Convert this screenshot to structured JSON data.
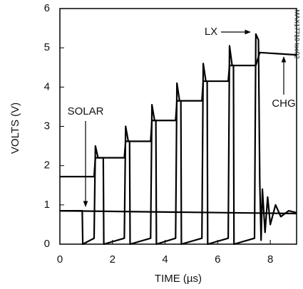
{
  "chart_data": {
    "type": "line",
    "xlabel": "TIME (µs)",
    "ylabel": "VOLTS (V)",
    "figure_id": "MAX17710 toc02",
    "xlim": [
      0,
      9
    ],
    "ylim": [
      0,
      6
    ],
    "xticks": [
      0,
      2,
      4,
      6,
      8
    ],
    "yticks": [
      0,
      1,
      2,
      3,
      4,
      5,
      6
    ],
    "grid": false,
    "series": [
      {
        "name": "LX",
        "color": "#000000",
        "x": [
          0,
          0.85,
          0.87,
          1.3,
          1.35,
          1.45,
          1.65,
          1.67,
          2.45,
          2.5,
          2.6,
          2.65,
          2.67,
          3.45,
          3.5,
          3.6,
          3.65,
          3.67,
          4.4,
          4.45,
          4.55,
          4.6,
          4.62,
          5.4,
          5.45,
          5.55,
          5.6,
          5.62,
          6.4,
          6.45,
          6.55,
          6.6,
          6.62,
          7.4,
          7.45,
          7.55,
          7.6,
          7.65,
          7.7,
          7.8,
          7.9,
          8.0,
          8.2,
          8.4,
          8.7,
          9
        ],
        "values": [
          0.85,
          0.85,
          0,
          0.15,
          2.5,
          2.2,
          2.2,
          0,
          0.15,
          3.0,
          2.62,
          2.62,
          0,
          0.15,
          3.55,
          3.15,
          3.15,
          0,
          0.15,
          4.1,
          3.65,
          3.65,
          0,
          0.15,
          4.6,
          4.15,
          4.15,
          0,
          0.15,
          5.05,
          4.55,
          4.55,
          0,
          0.15,
          5.35,
          5.2,
          1.6,
          0.1,
          1.4,
          0.3,
          1.2,
          0.5,
          1.0,
          0.7,
          0.85,
          0.8
        ]
      },
      {
        "name": "CHG",
        "color": "#000000",
        "x": [
          0,
          1.3,
          1.35,
          2.45,
          2.5,
          3.45,
          3.5,
          4.4,
          4.45,
          5.4,
          5.45,
          6.4,
          6.45,
          7.45,
          7.6,
          9
        ],
        "values": [
          1.72,
          1.72,
          2.2,
          2.2,
          2.62,
          2.62,
          3.15,
          3.15,
          3.65,
          3.65,
          4.15,
          4.15,
          4.55,
          4.55,
          4.88,
          4.82
        ]
      },
      {
        "name": "SOLAR",
        "color": "#000000",
        "x": [
          0,
          9
        ],
        "values": [
          0.85,
          0.78
        ]
      }
    ]
  }
}
